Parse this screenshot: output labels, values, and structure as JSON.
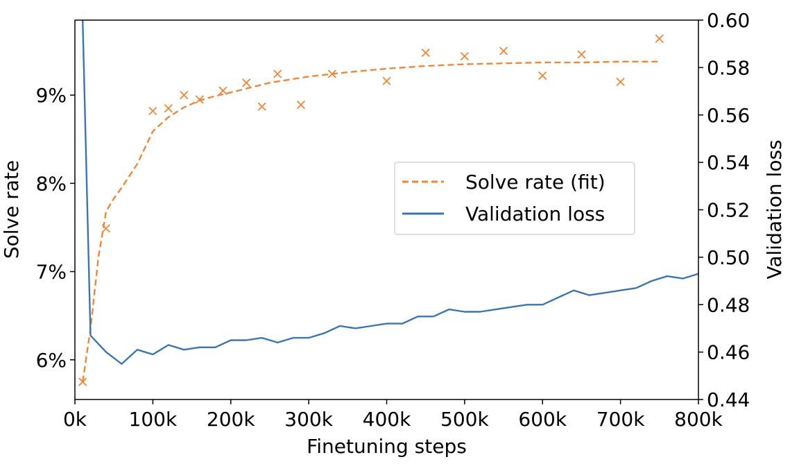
{
  "chart_data": {
    "type": "line",
    "xlabel": "Finetuning steps",
    "ylabel": "Solve rate",
    "y2label": "Validation loss",
    "xlim": [
      0,
      800000
    ],
    "ylim": [
      0.0555,
      0.0985
    ],
    "y2lim": [
      0.44,
      0.6
    ],
    "x_ticks": [
      {
        "value": 0,
        "label": "0k"
      },
      {
        "value": 100000,
        "label": "100k"
      },
      {
        "value": 200000,
        "label": "200k"
      },
      {
        "value": 300000,
        "label": "300k"
      },
      {
        "value": 400000,
        "label": "400k"
      },
      {
        "value": 500000,
        "label": "500k"
      },
      {
        "value": 600000,
        "label": "600k"
      },
      {
        "value": 700000,
        "label": "700k"
      },
      {
        "value": 800000,
        "label": "800k"
      }
    ],
    "y_ticks": [
      {
        "value": 0.06,
        "label": "6%"
      },
      {
        "value": 0.07,
        "label": "7%"
      },
      {
        "value": 0.08,
        "label": "8%"
      },
      {
        "value": 0.09,
        "label": "9%"
      }
    ],
    "y2_ticks": [
      {
        "value": 0.44,
        "label": "0.44"
      },
      {
        "value": 0.46,
        "label": "0.46"
      },
      {
        "value": 0.48,
        "label": "0.48"
      },
      {
        "value": 0.5,
        "label": "0.50"
      },
      {
        "value": 0.52,
        "label": "0.52"
      },
      {
        "value": 0.54,
        "label": "0.54"
      },
      {
        "value": 0.56,
        "label": "0.56"
      },
      {
        "value": 0.58,
        "label": "0.58"
      },
      {
        "value": 0.6,
        "label": "0.60"
      }
    ],
    "legend_position": "center-right",
    "grid": false,
    "series": [
      {
        "name": "Solve rate (fit)",
        "axis": "left",
        "style": "dashed",
        "color": "#ef8636",
        "x": [
          10000,
          20000,
          30000,
          40000,
          50000,
          60000,
          80000,
          100000,
          120000,
          140000,
          160000,
          180000,
          200000,
          250000,
          300000,
          350000,
          400000,
          450000,
          500000,
          550000,
          600000,
          650000,
          700000,
          750000
        ],
        "y": [
          0.0575,
          0.0635,
          0.0715,
          0.0768,
          0.0783,
          0.0795,
          0.0822,
          0.0859,
          0.0875,
          0.0886,
          0.0894,
          0.0899,
          0.0903,
          0.0914,
          0.0921,
          0.0926,
          0.093,
          0.0933,
          0.0935,
          0.0936,
          0.0937,
          0.0937,
          0.0938,
          0.0938
        ]
      },
      {
        "name": "",
        "axis": "left",
        "style": "markers-x",
        "color": "#ef8636",
        "x": [
          10000,
          40000,
          100000,
          120000,
          140000,
          160000,
          190000,
          220000,
          240000,
          260000,
          290000,
          330000,
          400000,
          450000,
          500000,
          550000,
          600000,
          650000,
          700000,
          750000
        ],
        "y": [
          0.0575,
          0.0749,
          0.0882,
          0.0885,
          0.09,
          0.0895,
          0.0905,
          0.0914,
          0.0887,
          0.0924,
          0.0889,
          0.0924,
          0.0916,
          0.0948,
          0.0944,
          0.095,
          0.0922,
          0.0946,
          0.0915,
          0.0964
        ]
      },
      {
        "name": "Validation loss",
        "axis": "right",
        "style": "solid",
        "color": "#3a75af",
        "x": [
          10000,
          20000,
          40000,
          60000,
          80000,
          100000,
          120000,
          140000,
          160000,
          180000,
          200000,
          220000,
          240000,
          260000,
          280000,
          300000,
          320000,
          340000,
          360000,
          380000,
          400000,
          420000,
          440000,
          460000,
          480000,
          500000,
          520000,
          540000,
          560000,
          580000,
          600000,
          620000,
          640000,
          660000,
          680000,
          700000,
          720000,
          740000,
          760000,
          780000,
          800000
        ],
        "y": [
          0.6,
          0.467,
          0.46,
          0.455,
          0.461,
          0.459,
          0.463,
          0.461,
          0.462,
          0.462,
          0.465,
          0.465,
          0.466,
          0.464,
          0.466,
          0.466,
          0.468,
          0.471,
          0.47,
          0.471,
          0.472,
          0.472,
          0.475,
          0.475,
          0.478,
          0.477,
          0.477,
          0.478,
          0.479,
          0.48,
          0.48,
          0.483,
          0.486,
          0.484,
          0.485,
          0.486,
          0.487,
          0.49,
          0.492,
          0.491,
          0.493
        ]
      }
    ]
  }
}
